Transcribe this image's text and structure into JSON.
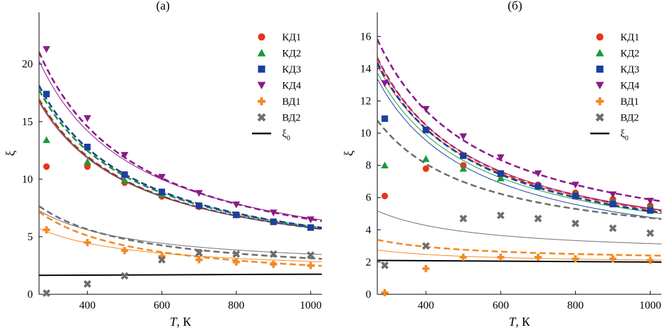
{
  "chart_data": [
    {
      "type": "scatter",
      "title": "(а)",
      "xlabel_italic": "T",
      "xlabel_unit": ", К",
      "ylabel": "ξ",
      "xlim": [
        270,
        1030
      ],
      "ylim": [
        0,
        24.5
      ],
      "xticks": [
        400,
        600,
        800,
        1000
      ],
      "yticks": [
        0,
        5,
        10,
        15,
        20
      ],
      "legend_position": "top-right",
      "series": [
        {
          "name": "КД1",
          "marker": "circle",
          "color": "#e8331c",
          "x": [
            290,
            400,
            500,
            600,
            700,
            800,
            900,
            1000
          ],
          "y": [
            11.1,
            11.1,
            9.7,
            8.5,
            7.6,
            6.9,
            6.3,
            5.8
          ],
          "fit_solid": {
            "a": 4030,
            "b": 1.75
          },
          "fit_dashed": {
            "a": 4130,
            "b": 1.66
          }
        },
        {
          "name": "КД2",
          "marker": "triangle-up",
          "color": "#1a9a3a",
          "x": [
            290,
            400,
            500,
            600,
            700,
            800,
            900,
            1000
          ],
          "y": [
            13.4,
            11.5,
            9.9,
            8.7,
            7.7,
            6.9,
            6.3,
            5.8
          ],
          "fit_solid": {
            "a": 4080,
            "b": 1.7
          },
          "fit_dashed": {
            "a": 4390,
            "b": 1.5
          }
        },
        {
          "name": "КД3",
          "marker": "square",
          "color": "#1c3f9c",
          "x": [
            290,
            400,
            500,
            600,
            700,
            800,
            900,
            1000
          ],
          "y": [
            17.4,
            12.8,
            10.4,
            8.9,
            7.7,
            6.9,
            6.3,
            5.8
          ],
          "fit_solid": {
            "a": 4090,
            "b": 1.7
          },
          "fit_dashed": {
            "a": 4520,
            "b": 1.4
          }
        },
        {
          "name": "КД4",
          "marker": "triangle-down",
          "color": "#8a1a8a",
          "x": [
            290,
            400,
            500,
            600,
            700,
            800,
            900,
            1000
          ],
          "y": [
            21.3,
            15.3,
            12.1,
            10.2,
            8.8,
            7.8,
            7.1,
            6.5
          ],
          "fit_solid": {
            "a": 5060,
            "b": 1.55
          },
          "fit_dashed": {
            "a": 5380,
            "b": 1.13
          }
        },
        {
          "name": "ВД1",
          "marker": "plus",
          "color": "#f08a24",
          "x": [
            290,
            400,
            500,
            600,
            700,
            800,
            900,
            1000
          ],
          "y": [
            5.6,
            4.5,
            3.8,
            3.3,
            3.0,
            2.8,
            2.6,
            2.5
          ],
          "fit_solid": {
            "a": 1060,
            "b": 1.8
          },
          "fit_dashed": {
            "a": 1720,
            "b": 0.8
          }
        },
        {
          "name": "ВД2",
          "marker": "x",
          "color": "#6e6e6e",
          "x": [
            290,
            400,
            500,
            600,
            700,
            800,
            900,
            1000
          ],
          "y": [
            0.1,
            0.9,
            1.6,
            3.0,
            3.6,
            3.5,
            3.5,
            3.4
          ],
          "fit_solid": {
            "a": 1400,
            "b": 2.1
          },
          "fit_dashed": {
            "a": 1680,
            "b": 1.45
          }
        },
        {
          "name": "ξ0",
          "marker": "line",
          "color": "#000000",
          "x": [
            270,
            1030
          ],
          "y": [
            1.65,
            1.75
          ]
        }
      ]
    },
    {
      "type": "scatter",
      "title": "(б)",
      "xlabel_italic": "T",
      "xlabel_unit": ", К",
      "ylabel": "ξ",
      "xlim": [
        270,
        1030
      ],
      "ylim": [
        0,
        17.5
      ],
      "xticks": [
        400,
        600,
        800,
        1000
      ],
      "yticks": [
        0,
        2,
        4,
        6,
        8,
        10,
        12,
        14,
        16
      ],
      "legend_position": "top-right",
      "series": [
        {
          "name": "КД1",
          "marker": "circle",
          "color": "#e8331c",
          "x": [
            290,
            400,
            500,
            600,
            700,
            800,
            900,
            1000
          ],
          "y": [
            6.1,
            7.8,
            8.0,
            7.4,
            6.8,
            6.3,
            5.9,
            5.5
          ],
          "fit_solid": {
            "a": 3300,
            "b": 2.0
          },
          "fit_dashed": {
            "a": 3480,
            "b": 1.8
          }
        },
        {
          "name": "КД2",
          "marker": "triangle-up",
          "color": "#1a9a3a",
          "x": [
            290,
            400,
            500,
            600,
            700,
            800,
            900,
            1000
          ],
          "y": [
            8.0,
            8.4,
            7.8,
            7.2,
            6.7,
            6.2,
            5.8,
            5.4
          ],
          "fit_solid": {
            "a": 3200,
            "b": 1.9
          },
          "fit_dashed": {
            "a": 3410,
            "b": 1.75
          }
        },
        {
          "name": "КД3",
          "marker": "square",
          "color": "#1c3f9c",
          "x": [
            290,
            400,
            500,
            600,
            700,
            800,
            900,
            1000
          ],
          "y": [
            10.9,
            10.2,
            8.6,
            7.5,
            6.7,
            6.1,
            5.6,
            5.2
          ],
          "fit_solid": {
            "a": 3180,
            "b": 1.6
          },
          "fit_dashed": {
            "a": 3410,
            "b": 1.75
          }
        },
        {
          "name": "КД4",
          "marker": "triangle-down",
          "color": "#8a1a8a",
          "x": [
            290,
            400,
            500,
            600,
            700,
            800,
            900,
            1000
          ],
          "y": [
            13.1,
            11.5,
            9.8,
            8.5,
            7.5,
            6.8,
            6.2,
            5.8
          ],
          "fit_solid": {
            "a": 3440,
            "b": 1.9
          },
          "fit_dashed": {
            "a": 3680,
            "b": 2.2
          }
        },
        {
          "name": "ВД1",
          "marker": "plus",
          "color": "#f08a24",
          "x": [
            290,
            400,
            500,
            600,
            700,
            800,
            900,
            1000
          ],
          "y": [
            0.1,
            1.6,
            2.3,
            2.3,
            2.3,
            2.2,
            2.2,
            2.1
          ],
          "fit_solid": {
            "a": 230,
            "b": 1.9
          },
          "fit_dashed": {
            "a": 360,
            "b": 2.05
          }
        },
        {
          "name": "ВД2",
          "marker": "x",
          "color": "#6e6e6e",
          "x": [
            290,
            400,
            500,
            600,
            700,
            800,
            900,
            1000
          ],
          "y": [
            1.8,
            3.0,
            4.7,
            4.9,
            4.7,
            4.4,
            4.1,
            3.8
          ],
          "fit_solid": {
            "a": 750,
            "b": 2.4
          },
          "fit_dashed": {
            "a": 2240,
            "b": 2.5
          }
        },
        {
          "name": "ξ0",
          "marker": "line",
          "color": "#000000",
          "x": [
            270,
            1030
          ],
          "y": [
            2.1,
            2.0
          ]
        }
      ]
    }
  ]
}
